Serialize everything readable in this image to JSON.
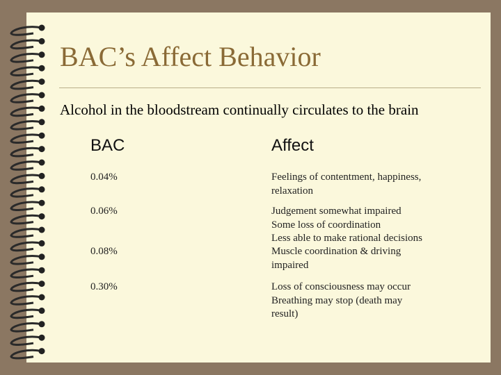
{
  "header": {
    "title": "BAC’s Affect Behavior",
    "subtitle": "Alcohol in the bloodstream continually circulates to the brain"
  },
  "table": {
    "columns": [
      "BAC",
      "Affect"
    ],
    "rows": [
      {
        "bac": "0.04%",
        "affect": [
          "Feelings of contentment, happiness,",
          "relaxation"
        ]
      },
      {
        "bac": "0.06%",
        "affect": [
          "Judgement somewhat impaired",
          "Some loss of coordination",
          "Less able to make rational decisions"
        ]
      },
      {
        "bac": "0.08%",
        "affect": [
          "Muscle coordination & driving",
          "impaired"
        ]
      },
      {
        "bac": "0.30%",
        "affect": [
          "Loss of consciousness may occur",
          "Breathing may stop (death may",
          "result)"
        ]
      }
    ]
  }
}
